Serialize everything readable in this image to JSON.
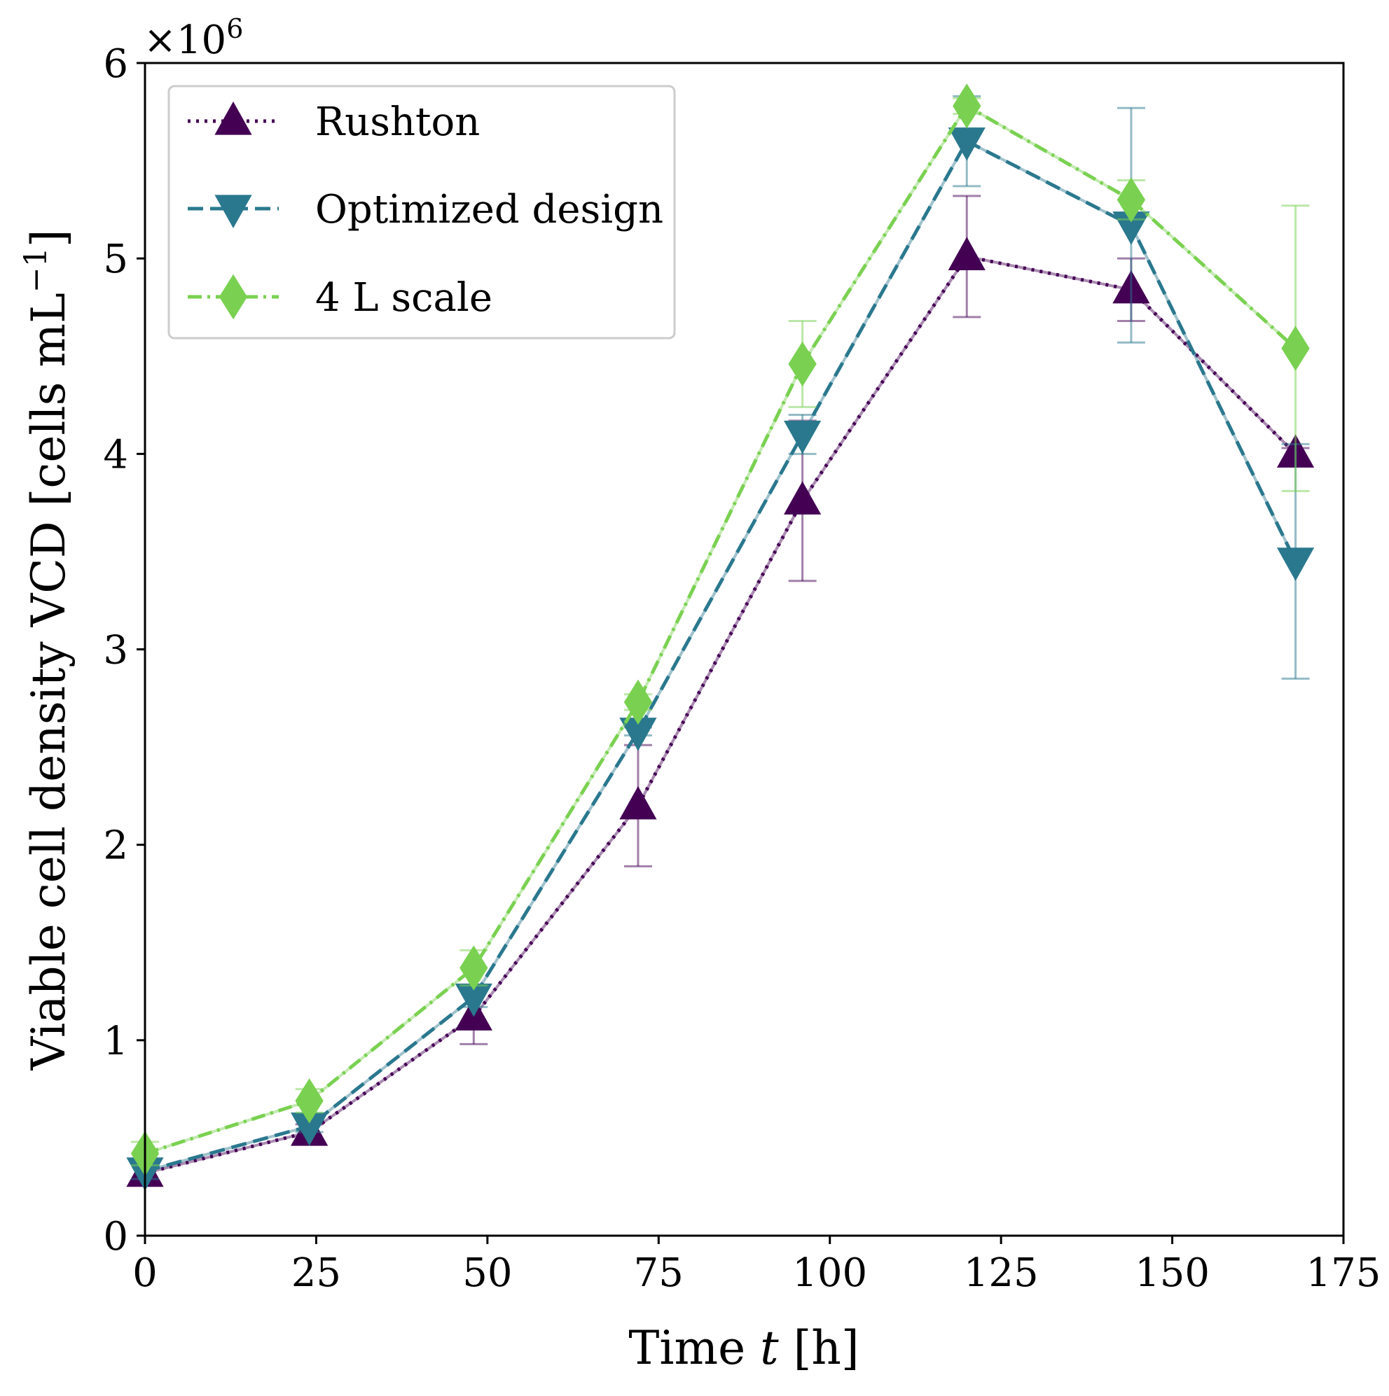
{
  "chart_data": {
    "type": "line",
    "title": "",
    "xlabel_prefix": "Time ",
    "xlabel_var": "t",
    "xlabel_suffix": " [h]",
    "ylabel": "Viable cell density VCD [cells mL",
    "ylabel_sup": "−1",
    "ylabel_close": "]",
    "y_multiplier": "×10",
    "y_multiplier_exp": "6",
    "xlim": [
      0,
      175
    ],
    "ylim": [
      0,
      6
    ],
    "xticks": [
      0,
      25,
      50,
      75,
      100,
      125,
      150,
      175
    ],
    "yticks": [
      0,
      1,
      2,
      3,
      4,
      5,
      6
    ],
    "x": [
      0,
      24,
      48,
      72,
      96,
      120,
      144,
      168
    ],
    "grid": false,
    "legend_position": "top-left",
    "series": [
      {
        "name": "Rushton",
        "color": "#440154",
        "line_style": "dotted",
        "marker": "triangle-up",
        "values": [
          0.32,
          0.53,
          1.12,
          2.2,
          3.76,
          5.01,
          4.84,
          4.0
        ],
        "errors": [
          0.05,
          0.04,
          0.14,
          0.31,
          0.41,
          0.31,
          0.16,
          0.03
        ]
      },
      {
        "name": "Optimized design",
        "color": "#2a788e",
        "line_style": "dashed",
        "marker": "triangle-down",
        "values": [
          0.33,
          0.56,
          1.22,
          2.58,
          4.1,
          5.6,
          5.17,
          3.45
        ],
        "errors": [
          0.04,
          0.03,
          0.05,
          0.02,
          0.1,
          0.23,
          0.6,
          0.6
        ]
      },
      {
        "name": "4 L scale",
        "color": "#7ad151",
        "line_style": "dashdot",
        "marker": "diamond",
        "values": [
          0.42,
          0.69,
          1.37,
          2.73,
          4.46,
          5.78,
          5.3,
          4.54
        ],
        "errors": [
          0.06,
          0.06,
          0.09,
          0.04,
          0.22,
          0.04,
          0.1,
          0.73
        ]
      }
    ]
  }
}
